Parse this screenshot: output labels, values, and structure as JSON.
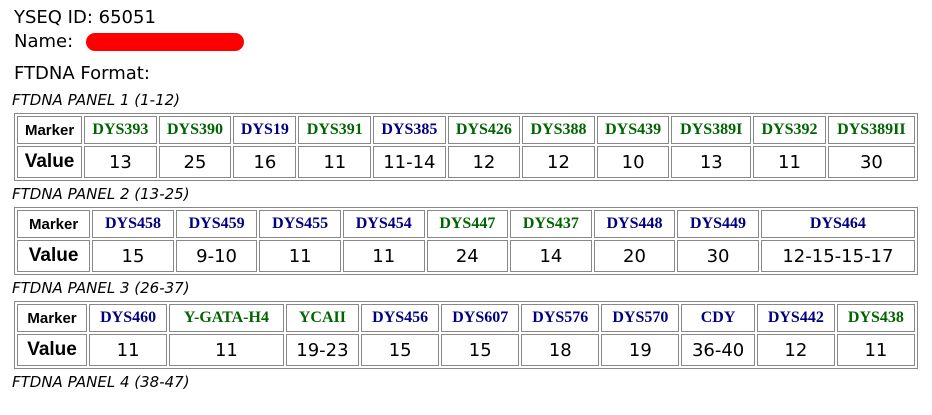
{
  "header": {
    "id_label": "YSEQ ID:",
    "id_value": "65051",
    "name_label": "Name:",
    "format_label": "FTDNA Format:"
  },
  "panels": [
    {
      "title": "FTDNA PANEL 1 (1-12)",
      "marker_label": "Marker",
      "value_label": "Value",
      "markers": [
        {
          "name": "DYS393",
          "color": "#006400",
          "value": 13
        },
        {
          "name": "DYS390",
          "color": "#006400",
          "value": 25
        },
        {
          "name": "DYS19",
          "color": "#000080",
          "value": 16
        },
        {
          "name": "DYS391",
          "color": "#006400",
          "value": 11
        },
        {
          "name": "DYS385",
          "color": "#000080",
          "value": "11-14"
        },
        {
          "name": "DYS426",
          "color": "#006400",
          "value": 12
        },
        {
          "name": "DYS388",
          "color": "#006400",
          "value": 12
        },
        {
          "name": "DYS439",
          "color": "#006400",
          "value": 10
        },
        {
          "name": "DYS389I",
          "color": "#006400",
          "value": 13
        },
        {
          "name": "DYS392",
          "color": "#006400",
          "value": 11
        },
        {
          "name": "DYS389II",
          "color": "#006400",
          "value": 30
        }
      ]
    },
    {
      "title": "FTDNA PANEL 2 (13-25)",
      "marker_label": "Marker",
      "value_label": "Value",
      "markers": [
        {
          "name": "DYS458",
          "color": "#000080",
          "value": 15
        },
        {
          "name": "DYS459",
          "color": "#000080",
          "value": "9-10"
        },
        {
          "name": "DYS455",
          "color": "#000080",
          "value": 11
        },
        {
          "name": "DYS454",
          "color": "#000080",
          "value": 11
        },
        {
          "name": "DYS447",
          "color": "#006400",
          "value": 24
        },
        {
          "name": "DYS437",
          "color": "#006400",
          "value": 14
        },
        {
          "name": "DYS448",
          "color": "#000080",
          "value": 20
        },
        {
          "name": "DYS449",
          "color": "#000080",
          "value": 30
        },
        {
          "name": "DYS464",
          "color": "#000080",
          "value": "12-15-15-17"
        }
      ]
    },
    {
      "title": "FTDNA PANEL 3 (26-37)",
      "marker_label": "Marker",
      "value_label": "Value",
      "markers": [
        {
          "name": "DYS460",
          "color": "#000080",
          "value": 11
        },
        {
          "name": "Y-GATA-H4",
          "color": "#006400",
          "value": 11
        },
        {
          "name": "YCAII",
          "color": "#006400",
          "value": "19-23"
        },
        {
          "name": "DYS456",
          "color": "#000080",
          "value": 15
        },
        {
          "name": "DYS607",
          "color": "#000080",
          "value": 15
        },
        {
          "name": "DYS576",
          "color": "#000080",
          "value": 18
        },
        {
          "name": "DYS570",
          "color": "#000080",
          "value": 19
        },
        {
          "name": "CDY",
          "color": "#000080",
          "value": "36-40"
        },
        {
          "name": "DYS442",
          "color": "#000080",
          "value": 12
        },
        {
          "name": "DYS438",
          "color": "#006400",
          "value": 11
        }
      ]
    },
    {
      "title": "FTDNA PANEL 4 (38-47)"
    }
  ]
}
